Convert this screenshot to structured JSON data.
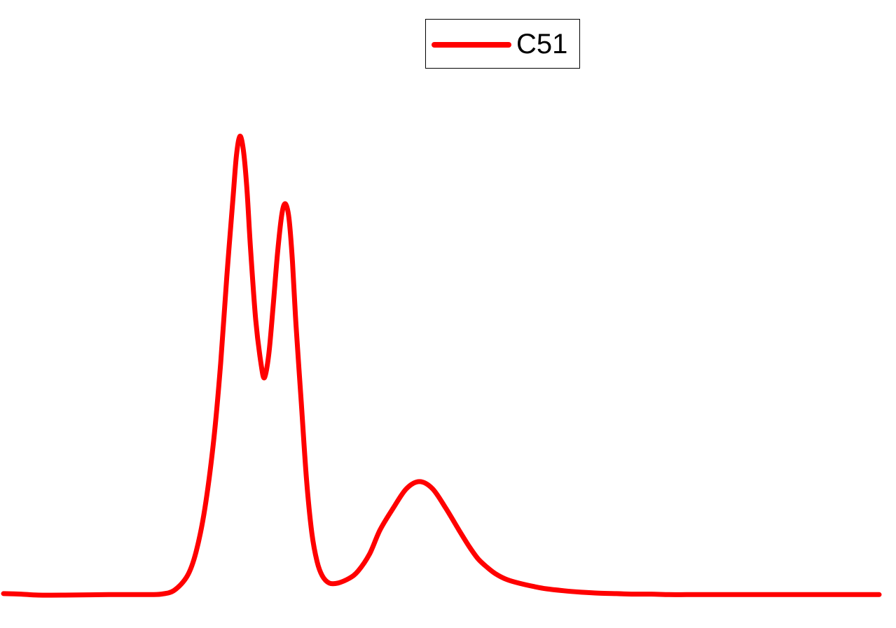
{
  "chart_data": {
    "type": "line",
    "title": "",
    "xlabel": "",
    "ylabel": "",
    "xlim": [
      0,
      1
    ],
    "ylim": [
      0,
      1
    ],
    "grid": false,
    "axes_visible": false,
    "legend_position": "top-center",
    "series": [
      {
        "name": "C51",
        "color": "#ff0000",
        "x": [
          0.0,
          0.02,
          0.04,
          0.07,
          0.12,
          0.16,
          0.18,
          0.195,
          0.21,
          0.22,
          0.23,
          0.24,
          0.248,
          0.255,
          0.262,
          0.266,
          0.27,
          0.274,
          0.278,
          0.282,
          0.288,
          0.294,
          0.298,
          0.303,
          0.308,
          0.313,
          0.318,
          0.322,
          0.326,
          0.33,
          0.334,
          0.34,
          0.346,
          0.352,
          0.358,
          0.364,
          0.372,
          0.382,
          0.395,
          0.405,
          0.418,
          0.43,
          0.445,
          0.46,
          0.475,
          0.49,
          0.505,
          0.52,
          0.532,
          0.542,
          0.552,
          0.562,
          0.575,
          0.59,
          0.605,
          0.62,
          0.64,
          0.66,
          0.68,
          0.7,
          0.72,
          0.74,
          0.76,
          0.78,
          0.8,
          0.85,
          0.9,
          0.95,
          1.0
        ],
        "values": [
          0.003,
          0.002,
          0.0,
          0.0,
          0.001,
          0.001,
          0.002,
          0.01,
          0.04,
          0.09,
          0.18,
          0.32,
          0.48,
          0.66,
          0.82,
          0.91,
          0.95,
          0.92,
          0.84,
          0.72,
          0.57,
          0.48,
          0.45,
          0.5,
          0.6,
          0.71,
          0.79,
          0.81,
          0.78,
          0.69,
          0.56,
          0.4,
          0.24,
          0.13,
          0.07,
          0.04,
          0.025,
          0.025,
          0.035,
          0.05,
          0.085,
          0.135,
          0.18,
          0.22,
          0.235,
          0.22,
          0.18,
          0.135,
          0.1,
          0.075,
          0.058,
          0.044,
          0.032,
          0.024,
          0.018,
          0.013,
          0.009,
          0.006,
          0.004,
          0.003,
          0.002,
          0.002,
          0.001,
          0.001,
          0.001,
          0.001,
          0.001,
          0.001,
          0.001
        ]
      }
    ]
  }
}
